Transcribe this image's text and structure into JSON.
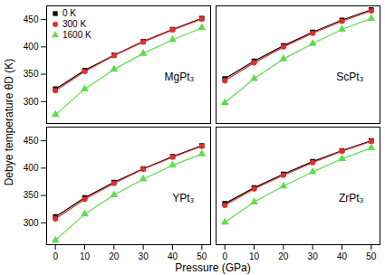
{
  "chart_data": {
    "type": "line",
    "xlabel": "Pressure (GPa)",
    "ylabel": "Debye temperature θD (K)",
    "x": [
      0,
      10,
      20,
      30,
      40,
      50
    ],
    "xlim": [
      -3,
      53
    ],
    "xticks": [
      0,
      10,
      20,
      30,
      40,
      50
    ],
    "ylim": [
      260,
      475
    ],
    "yticks": [
      300,
      350,
      400,
      450
    ],
    "legend": "upper left",
    "panels": [
      {
        "title": "MgPt₃",
        "series": [
          {
            "name": "0 K",
            "color": "#000000",
            "marker": "square",
            "values": [
              323,
              357,
              385,
              410,
              432,
              452
            ]
          },
          {
            "name": "300 K",
            "color": "#e03030",
            "marker": "circle",
            "values": [
              320,
              355,
              384,
              409,
              431,
              451
            ]
          },
          {
            "name": "1600 K",
            "color": "#5fdc4f",
            "marker": "triangle",
            "values": [
              276,
              323,
              359,
              388,
              413,
              435
            ]
          }
        ]
      },
      {
        "title": "ScPt₃",
        "series": [
          {
            "name": "0 K",
            "color": "#000000",
            "marker": "square",
            "values": [
              342,
              374,
              402,
              427,
              449,
              468
            ]
          },
          {
            "name": "300 K",
            "color": "#e03030",
            "marker": "circle",
            "values": [
              338,
              371,
              400,
              425,
              447,
              466
            ]
          },
          {
            "name": "1600 K",
            "color": "#5fdc4f",
            "marker": "triangle",
            "values": [
              298,
              342,
              378,
              406,
              432,
              452
            ]
          }
        ]
      },
      {
        "title": "YPt₃",
        "series": [
          {
            "name": "0 K",
            "color": "#000000",
            "marker": "square",
            "values": [
              311,
              346,
              374,
              399,
              421,
              441
            ]
          },
          {
            "name": "300 K",
            "color": "#e03030",
            "marker": "circle",
            "values": [
              307,
              343,
              372,
              398,
              420,
              440
            ]
          },
          {
            "name": "1600 K",
            "color": "#5fdc4f",
            "marker": "triangle",
            "values": [
              268,
              316,
              351,
              380,
              405,
              426
            ]
          }
        ]
      },
      {
        "title": "ZrPt₃",
        "series": [
          {
            "name": "0 K",
            "color": "#000000",
            "marker": "square",
            "values": [
              335,
              364,
              389,
              412,
              432,
              450
            ]
          },
          {
            "name": "300 K",
            "color": "#e03030",
            "marker": "circle",
            "values": [
              332,
              362,
              387,
              410,
              431,
              449
            ]
          },
          {
            "name": "1600 K",
            "color": "#5fdc4f",
            "marker": "triangle",
            "values": [
              301,
              338,
              367,
              393,
              417,
              437
            ]
          }
        ]
      }
    ]
  }
}
